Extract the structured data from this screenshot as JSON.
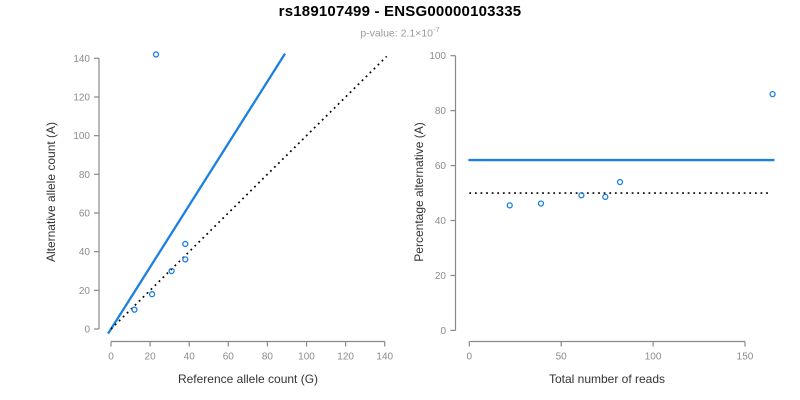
{
  "header": {
    "title": "rs189107499 - ENSG00000103335",
    "subtitle_prefix": "p-value: 2.1×10",
    "subtitle_exponent": "-7"
  },
  "colors": {
    "accent_blue": "#1b80e0",
    "identity_black": "#000000",
    "axis": "#898989",
    "tick_label": "#8c8c8c",
    "axis_title": "#333333",
    "title": "#000000",
    "subtitle": "#9a9a9a",
    "background": "#ffffff"
  },
  "chart_data": [
    {
      "type": "scatter",
      "panel": "left",
      "xlabel": "Reference allele count (G)",
      "ylabel": "Alternative allele count (A)",
      "xlim": [
        0,
        140
      ],
      "ylim": [
        0,
        140
      ],
      "xticks": [
        0,
        20,
        40,
        60,
        80,
        100,
        120,
        140
      ],
      "yticks": [
        0,
        20,
        40,
        60,
        80,
        100,
        120,
        140
      ],
      "grid": false,
      "marker": "open-circle",
      "points": [
        [
          23,
          142
        ],
        [
          38,
          44
        ],
        [
          38,
          36
        ],
        [
          31,
          30
        ],
        [
          21,
          18
        ],
        [
          12,
          10
        ]
      ],
      "lines": [
        {
          "name": "fit-line",
          "style": "solid",
          "color": "blue",
          "slope": 1.6,
          "intercept": 0,
          "from": [
            -1.5,
            -2.4
          ],
          "to": [
            89,
            142.4
          ]
        },
        {
          "name": "identity-line",
          "style": "dotted",
          "color": "black",
          "slope": 1,
          "intercept": 0,
          "from": [
            0,
            0
          ],
          "to": [
            141,
            141
          ]
        }
      ]
    },
    {
      "type": "scatter",
      "panel": "right",
      "xlabel": "Total number of reads",
      "ylabel": "Percentage alternative (A)",
      "xlim": [
        0,
        150
      ],
      "ylim": [
        0,
        100
      ],
      "xticks": [
        0,
        50,
        100,
        150
      ],
      "yticks": [
        0,
        20,
        40,
        60,
        80,
        100
      ],
      "grid": false,
      "marker": "open-circle",
      "points": [
        [
          165,
          86
        ],
        [
          82,
          54
        ],
        [
          74,
          48.6
        ],
        [
          61,
          49.2
        ],
        [
          39,
          46.2
        ],
        [
          22,
          45.5
        ]
      ],
      "lines": [
        {
          "name": "expected-percentage-line",
          "style": "solid",
          "color": "blue",
          "y": 62,
          "from": [
            -0.5,
            62
          ],
          "to": [
            166,
            62
          ]
        },
        {
          "name": "null-50pct-line",
          "style": "dotted",
          "color": "black",
          "y": 50,
          "from": [
            0,
            50
          ],
          "to": [
            163,
            50
          ]
        }
      ]
    }
  ]
}
